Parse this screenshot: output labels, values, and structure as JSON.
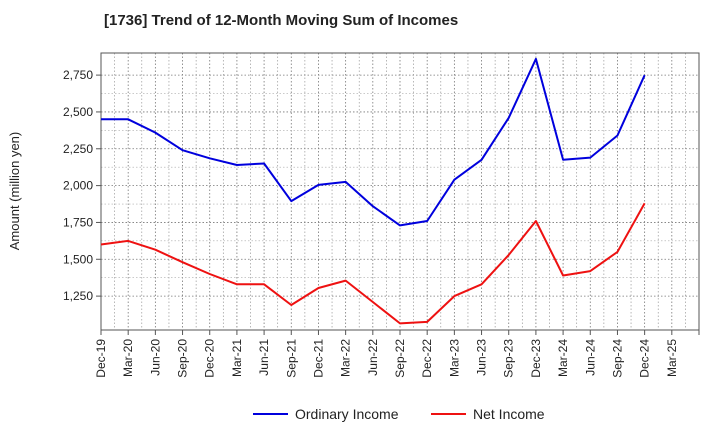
{
  "chart_data": {
    "type": "line",
    "title": "[1736]  Trend of 12-Month Moving Sum of Incomes",
    "xlabel": "",
    "ylabel": "Amount (million yen)",
    "ylim": [
      1020,
      2900
    ],
    "yticks": [
      1250,
      1500,
      1750,
      2000,
      2250,
      2500,
      2750
    ],
    "ytick_labels": [
      "1,250",
      "1,500",
      "1,750",
      "2,000",
      "2,250",
      "2,500",
      "2,750"
    ],
    "categories": [
      "Dec-19",
      "Mar-20",
      "Jun-20",
      "Sep-20",
      "Dec-20",
      "Mar-21",
      "Jun-21",
      "Sep-21",
      "Dec-21",
      "Mar-22",
      "Jun-22",
      "Sep-22",
      "Dec-22",
      "Mar-23",
      "Jun-23",
      "Sep-23",
      "Dec-23",
      "Mar-24",
      "Jun-24",
      "Sep-24",
      "Dec-24",
      "Mar-25"
    ],
    "grid": true,
    "legend_position": "bottom-center",
    "series": [
      {
        "name": "Ordinary Income",
        "color": "#0000dd",
        "values": [
          2450,
          2450,
          2360,
          2240,
          2185,
          2140,
          2150,
          1895,
          2005,
          2025,
          1860,
          1730,
          1760,
          2040,
          2175,
          2460,
          2860,
          2175,
          2190,
          2340,
          2750,
          null
        ]
      },
      {
        "name": "Net Income",
        "color": "#ee1111",
        "values": [
          1600,
          1625,
          1565,
          1480,
          1400,
          1330,
          1330,
          1190,
          1305,
          1355,
          1210,
          1065,
          1075,
          1250,
          1330,
          1530,
          1760,
          1390,
          1420,
          1550,
          1880,
          null
        ]
      }
    ]
  }
}
